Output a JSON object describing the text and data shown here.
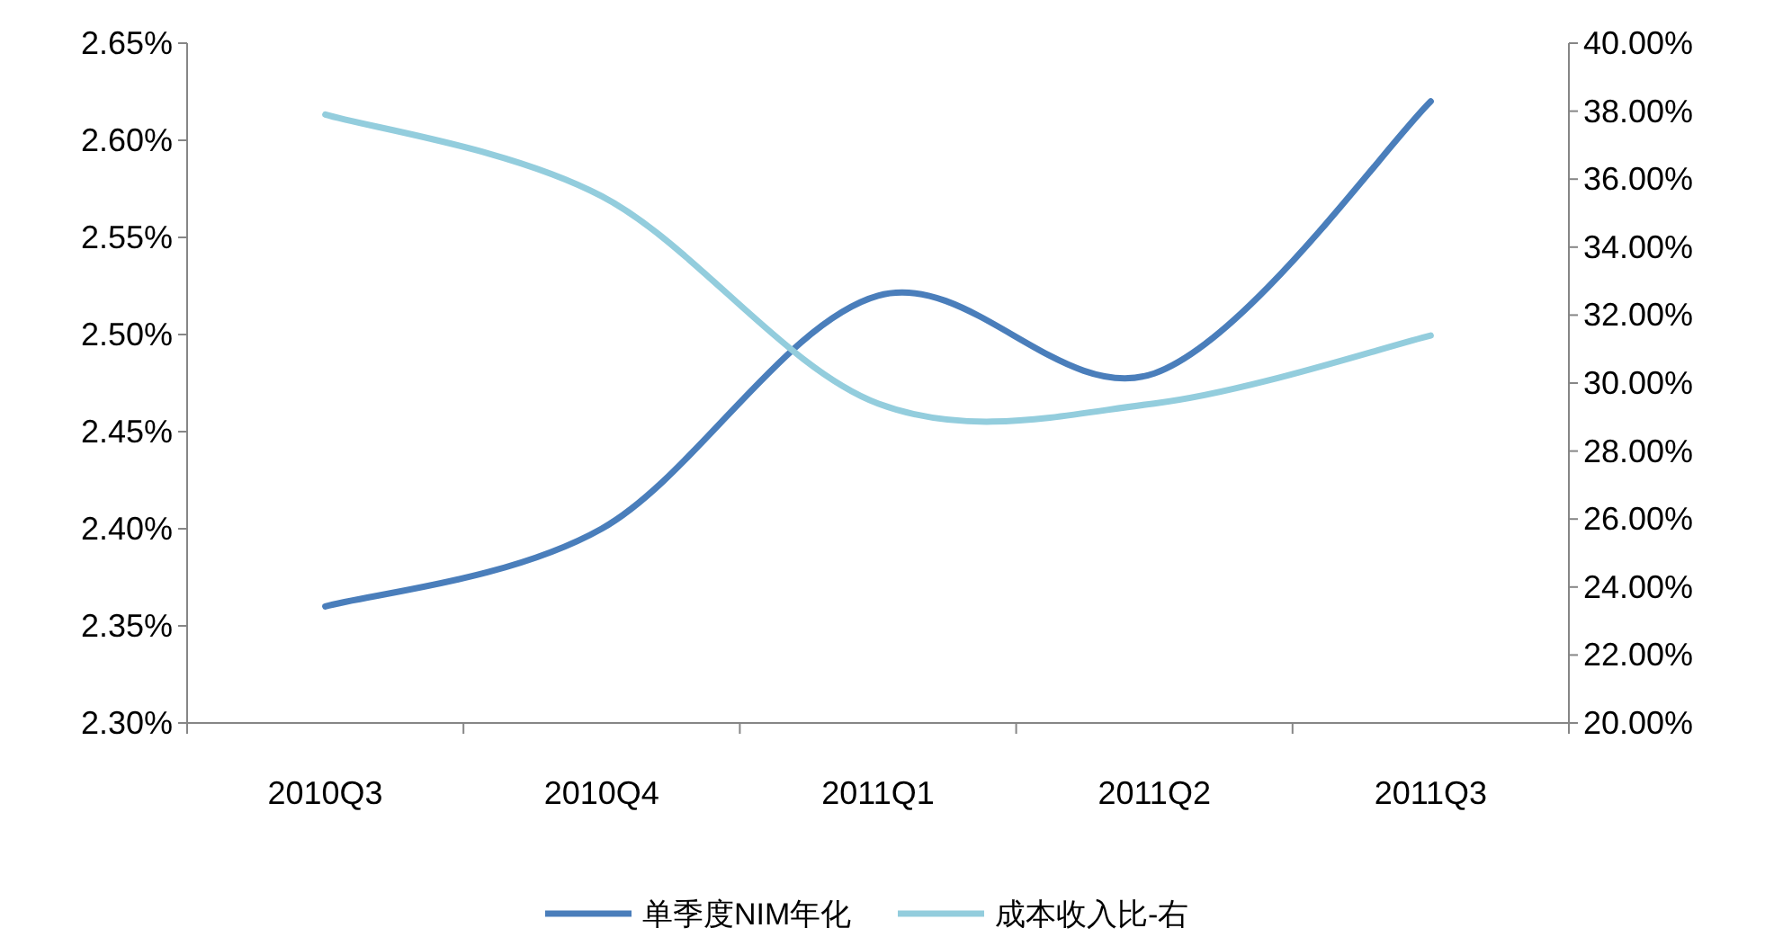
{
  "chart_data": {
    "type": "line",
    "categories": [
      "2010Q3",
      "2010Q4",
      "2011Q1",
      "2011Q2",
      "2011Q3"
    ],
    "series": [
      {
        "name": "单季度NIM年化",
        "color": "#4a7ebb",
        "values": [
          2.36,
          2.4,
          2.52,
          2.48,
          2.62
        ]
      },
      {
        "name": "成本收入比-右",
        "color": "#93cddd",
        "axis": "y2",
        "values": [
          37.9,
          35.5,
          29.4,
          29.4,
          31.4
        ]
      }
    ],
    "ylim": [
      2.3,
      2.65
    ],
    "yticks": [
      {
        "value": 2.3,
        "label": "2.30%"
      },
      {
        "value": 2.35,
        "label": "2.35%"
      },
      {
        "value": 2.4,
        "label": "2.40%"
      },
      {
        "value": 2.45,
        "label": "2.45%"
      },
      {
        "value": 2.5,
        "label": "2.50%"
      },
      {
        "value": 2.55,
        "label": "2.55%"
      },
      {
        "value": 2.6,
        "label": "2.60%"
      },
      {
        "value": 2.65,
        "label": "2.65%"
      }
    ],
    "y2lim": [
      20,
      40
    ],
    "y2ticks": [
      {
        "value": 20,
        "label": "20.00%"
      },
      {
        "value": 22,
        "label": "22.00%"
      },
      {
        "value": 24,
        "label": "24.00%"
      },
      {
        "value": 26,
        "label": "26.00%"
      },
      {
        "value": 28,
        "label": "28.00%"
      },
      {
        "value": 30,
        "label": "30.00%"
      },
      {
        "value": 32,
        "label": "32.00%"
      },
      {
        "value": 34,
        "label": "34.00%"
      },
      {
        "value": 36,
        "label": "36.00%"
      },
      {
        "value": 38,
        "label": "38.00%"
      },
      {
        "value": 40,
        "label": "40.00%"
      }
    ],
    "legend": "bottom"
  }
}
